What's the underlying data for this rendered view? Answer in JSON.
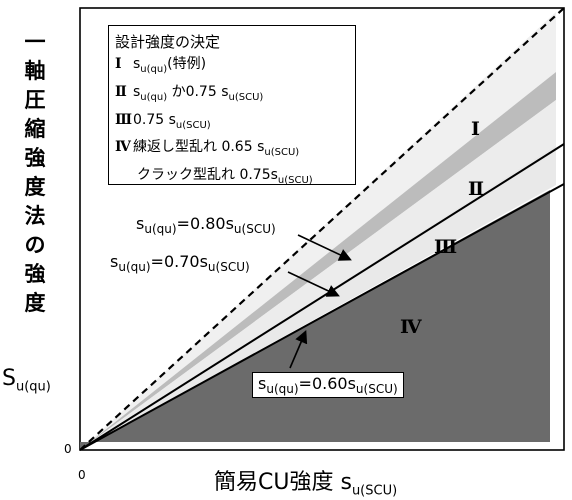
{
  "y_axis": {
    "title_chars": [
      "一",
      "軸",
      "圧",
      "縮",
      "強",
      "度",
      "法",
      "の",
      "強",
      "度"
    ],
    "symbol_base": "S",
    "symbol_sub": "u(qu)"
  },
  "x_axis": {
    "title": "簡易CU強度 ",
    "symbol_base": "s",
    "symbol_sub": "u(SCU)"
  },
  "origin": {
    "x": "0",
    "y": "0"
  },
  "legend": {
    "title": "設計強度の決定",
    "rows": [
      {
        "num": "Ⅰ",
        "base": "s",
        "sub": "u(qu)",
        "tail": "(特例)"
      },
      {
        "num": "Ⅱ",
        "base": "s",
        "sub": "u(qu)",
        "tail": " か0.75 ",
        "base2": "s",
        "sub2": "u(SCU)"
      },
      {
        "num": "Ⅲ",
        "pre": "0.75 ",
        "base": "s",
        "sub": "u(SCU)"
      },
      {
        "num": "Ⅳ",
        "pre": "練返し型乱れ 0.65 ",
        "base": "s",
        "sub": "u(SCU)"
      },
      {
        "pre": "クラック型乱れ 0.75",
        "base": "s",
        "sub": "u(SCU)"
      }
    ]
  },
  "line_labels": {
    "ratio_080": {
      "base1": "s",
      "sub1": "u(qu)",
      "mid": "=0.80s",
      "sub2": "u(SCU)"
    },
    "ratio_070": {
      "base1": "s",
      "sub1": "u(qu)",
      "mid": "=0.70s",
      "sub2": "u(SCU)"
    },
    "ratio_060": {
      "base1": "s",
      "sub1": "u(qu)",
      "mid": "=0.60s",
      "sub2": "u(SCU)"
    }
  },
  "zones": {
    "zone_1": "Ⅰ",
    "zone_2": "Ⅱ",
    "zone_3": "Ⅲ",
    "zone_4": "Ⅳ"
  },
  "colors": {
    "zone_1_fill": "#f0f0f0",
    "zone_2_fill": "#bcbcbc",
    "zone_3_fill": "#e9e9e9",
    "zone_4_fill": "#6b6b6b"
  }
}
